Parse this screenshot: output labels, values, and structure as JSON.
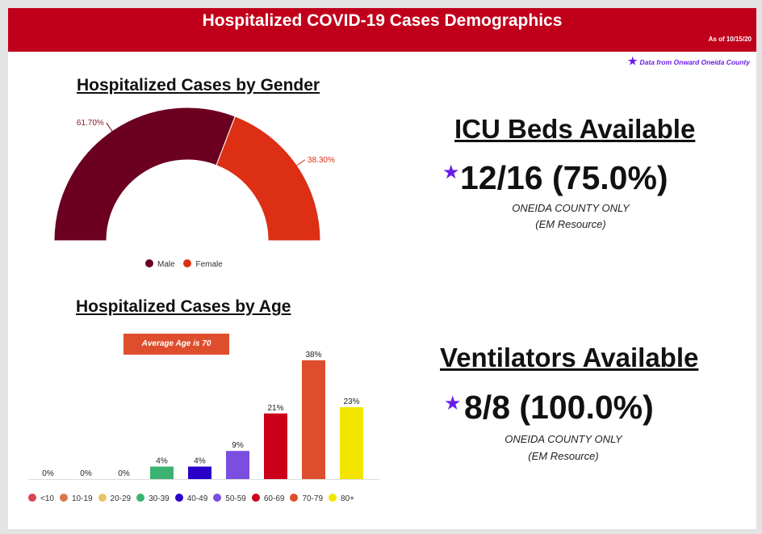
{
  "header": {
    "title": "Hospitalized COVID-19 Cases Demographics",
    "as_of": "As of 10/15/20"
  },
  "source_note": "Data from Onward Oneida County",
  "gender_section": {
    "title": "Hospitalized Cases by Gender"
  },
  "age_section": {
    "title": "Hospitalized Cases by Age",
    "average_note": "Average Age is 70"
  },
  "icu": {
    "title": "ICU Beds Available",
    "value": "12/16 (75.0%)",
    "note_line1": "ONEIDA COUNTY ONLY",
    "note_line2": "(EM Resource)"
  },
  "ventilators": {
    "title": "Ventilators Available",
    "value": "8/8 (100.0%)",
    "note_line1": "ONEIDA COUNTY ONLY",
    "note_line2": "(EM Resource)"
  },
  "colors": {
    "header": "#c0001b",
    "accent": "#6a1ce6"
  },
  "chart_data": [
    {
      "type": "pie",
      "style": "half-donut",
      "title": "Hospitalized Cases by Gender",
      "categories": [
        "Male",
        "Female"
      ],
      "values": [
        61.7,
        38.3
      ],
      "labels": [
        "61.70%",
        "38.30%"
      ],
      "colors": [
        "#6b0020",
        "#dc2f14"
      ],
      "legend": "bottom"
    },
    {
      "type": "bar",
      "title": "Hospitalized Cases by Age",
      "categories": [
        "<10",
        "10-19",
        "20-29",
        "30-39",
        "40-49",
        "50-59",
        "60-69",
        "70-79",
        "80+"
      ],
      "values": [
        0,
        0,
        0,
        4,
        4,
        9,
        21,
        38,
        23
      ],
      "labels": [
        "0%",
        "0%",
        "0%",
        "4%",
        "4%",
        "9%",
        "21%",
        "38%",
        "23%"
      ],
      "colors": [
        "#d94451",
        "#d9774a",
        "#e8c46a",
        "#3cb371",
        "#2a00c8",
        "#7b4ee0",
        "#cc001b",
        "#de4e2c",
        "#f2e600"
      ],
      "ylim": [
        0,
        38
      ],
      "legend": "bottom",
      "annotation": "Average Age is 70"
    }
  ]
}
